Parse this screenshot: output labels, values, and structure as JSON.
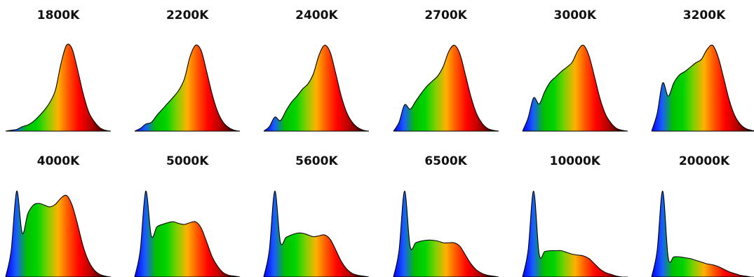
{
  "chart_data": [
    {
      "type": "area",
      "title": "1800K",
      "x": [
        400,
        420,
        440,
        460,
        480,
        500,
        520,
        540,
        560,
        580,
        600,
        620,
        640,
        660,
        680,
        700,
        720,
        740,
        760,
        780
      ],
      "values": [
        0.0,
        0.01,
        0.02,
        0.05,
        0.07,
        0.11,
        0.17,
        0.24,
        0.33,
        0.47,
        0.77,
        0.98,
        0.94,
        0.7,
        0.43,
        0.22,
        0.11,
        0.04,
        0.01,
        0.0
      ]
    },
    {
      "type": "area",
      "title": "2200K",
      "x": [
        400,
        420,
        440,
        460,
        480,
        500,
        520,
        540,
        560,
        580,
        600,
        620,
        640,
        660,
        680,
        700,
        720,
        740,
        760,
        780
      ],
      "values": [
        0.0,
        0.03,
        0.08,
        0.1,
        0.18,
        0.25,
        0.32,
        0.39,
        0.47,
        0.6,
        0.85,
        0.98,
        0.92,
        0.68,
        0.42,
        0.22,
        0.1,
        0.04,
        0.01,
        0.0
      ]
    },
    {
      "type": "area",
      "title": "2400K",
      "x": [
        400,
        420,
        440,
        460,
        480,
        500,
        520,
        540,
        560,
        580,
        600,
        620,
        640,
        660,
        680,
        700,
        720,
        740,
        760,
        780
      ],
      "values": [
        0.0,
        0.05,
        0.16,
        0.12,
        0.23,
        0.33,
        0.4,
        0.48,
        0.54,
        0.66,
        0.87,
        0.98,
        0.9,
        0.66,
        0.4,
        0.21,
        0.1,
        0.04,
        0.01,
        0.0
      ]
    },
    {
      "type": "area",
      "title": "2700K",
      "x": [
        400,
        420,
        440,
        460,
        480,
        500,
        520,
        540,
        560,
        580,
        600,
        620,
        640,
        660,
        680,
        700,
        720,
        740,
        760,
        780
      ],
      "values": [
        0.0,
        0.1,
        0.3,
        0.25,
        0.34,
        0.43,
        0.51,
        0.57,
        0.63,
        0.74,
        0.91,
        0.98,
        0.88,
        0.64,
        0.39,
        0.2,
        0.09,
        0.03,
        0.01,
        0.0
      ]
    },
    {
      "type": "area",
      "title": "3000K",
      "x": [
        400,
        420,
        440,
        460,
        480,
        500,
        520,
        540,
        560,
        580,
        600,
        620,
        640,
        660,
        680,
        700,
        720,
        740,
        760,
        780
      ],
      "values": [
        0.0,
        0.15,
        0.38,
        0.31,
        0.45,
        0.56,
        0.62,
        0.68,
        0.73,
        0.79,
        0.92,
        0.98,
        0.86,
        0.62,
        0.37,
        0.19,
        0.09,
        0.03,
        0.01,
        0.0
      ]
    },
    {
      "type": "area",
      "title": "3200K",
      "x": [
        400,
        420,
        440,
        460,
        480,
        500,
        520,
        540,
        560,
        580,
        600,
        620,
        640,
        660,
        680,
        700,
        720,
        740,
        760,
        780
      ],
      "values": [
        0.0,
        0.2,
        0.55,
        0.4,
        0.55,
        0.64,
        0.68,
        0.73,
        0.78,
        0.82,
        0.93,
        0.98,
        0.85,
        0.61,
        0.36,
        0.18,
        0.08,
        0.03,
        0.01,
        0.0
      ]
    },
    {
      "type": "area",
      "title": "4000K",
      "x": [
        400,
        420,
        440,
        460,
        480,
        500,
        520,
        540,
        560,
        580,
        600,
        620,
        640,
        660,
        680,
        700,
        720,
        740,
        760,
        780
      ],
      "values": [
        0.0,
        0.3,
        0.98,
        0.5,
        0.72,
        0.82,
        0.84,
        0.82,
        0.8,
        0.83,
        0.9,
        0.93,
        0.82,
        0.6,
        0.35,
        0.18,
        0.08,
        0.03,
        0.01,
        0.0
      ]
    },
    {
      "type": "area",
      "title": "5000K",
      "x": [
        400,
        420,
        440,
        460,
        480,
        500,
        520,
        540,
        560,
        580,
        600,
        620,
        640,
        660,
        680,
        700,
        720,
        740,
        760,
        780
      ],
      "values": [
        0.0,
        0.3,
        0.98,
        0.47,
        0.57,
        0.6,
        0.62,
        0.63,
        0.61,
        0.6,
        0.62,
        0.63,
        0.56,
        0.4,
        0.23,
        0.12,
        0.05,
        0.02,
        0.01,
        0.0
      ]
    },
    {
      "type": "area",
      "title": "5600K",
      "x": [
        400,
        420,
        440,
        460,
        480,
        500,
        520,
        540,
        560,
        580,
        600,
        620,
        640,
        660,
        680,
        700,
        720,
        740,
        760,
        780
      ],
      "values": [
        0.0,
        0.3,
        0.98,
        0.4,
        0.45,
        0.48,
        0.5,
        0.5,
        0.48,
        0.46,
        0.47,
        0.48,
        0.43,
        0.31,
        0.18,
        0.09,
        0.04,
        0.02,
        0.01,
        0.0
      ]
    },
    {
      "type": "area",
      "title": "6500K",
      "x": [
        400,
        420,
        440,
        460,
        480,
        500,
        520,
        540,
        560,
        580,
        600,
        620,
        640,
        660,
        680,
        700,
        720,
        740,
        760,
        780
      ],
      "values": [
        0.0,
        0.3,
        0.98,
        0.35,
        0.39,
        0.41,
        0.42,
        0.42,
        0.41,
        0.39,
        0.39,
        0.39,
        0.35,
        0.25,
        0.15,
        0.08,
        0.04,
        0.02,
        0.01,
        0.0
      ]
    },
    {
      "type": "area",
      "title": "10000K",
      "x": [
        400,
        420,
        440,
        460,
        480,
        500,
        520,
        540,
        560,
        580,
        600,
        620,
        640,
        660,
        680,
        700,
        720,
        740,
        760,
        780
      ],
      "values": [
        0.0,
        0.3,
        0.98,
        0.26,
        0.29,
        0.3,
        0.3,
        0.3,
        0.28,
        0.26,
        0.25,
        0.24,
        0.21,
        0.15,
        0.09,
        0.05,
        0.03,
        0.01,
        0.0,
        0.0
      ]
    },
    {
      "type": "area",
      "title": "20000K",
      "x": [
        400,
        420,
        440,
        460,
        480,
        500,
        520,
        540,
        560,
        580,
        600,
        620,
        640,
        660,
        680,
        700,
        720,
        740,
        760,
        780
      ],
      "values": [
        0.0,
        0.3,
        0.98,
        0.22,
        0.23,
        0.23,
        0.22,
        0.21,
        0.19,
        0.17,
        0.15,
        0.14,
        0.12,
        0.09,
        0.06,
        0.04,
        0.02,
        0.01,
        0.0,
        0.0
      ]
    }
  ],
  "colors": {
    "spectrum_stops": [
      "#0000ff",
      "#1a5cff",
      "#00c000",
      "#00d400",
      "#7fd000",
      "#ffb000",
      "#ff5000",
      "#ff0000",
      "#c00000",
      "#600000",
      "#000000"
    ],
    "outline": "#000000"
  }
}
